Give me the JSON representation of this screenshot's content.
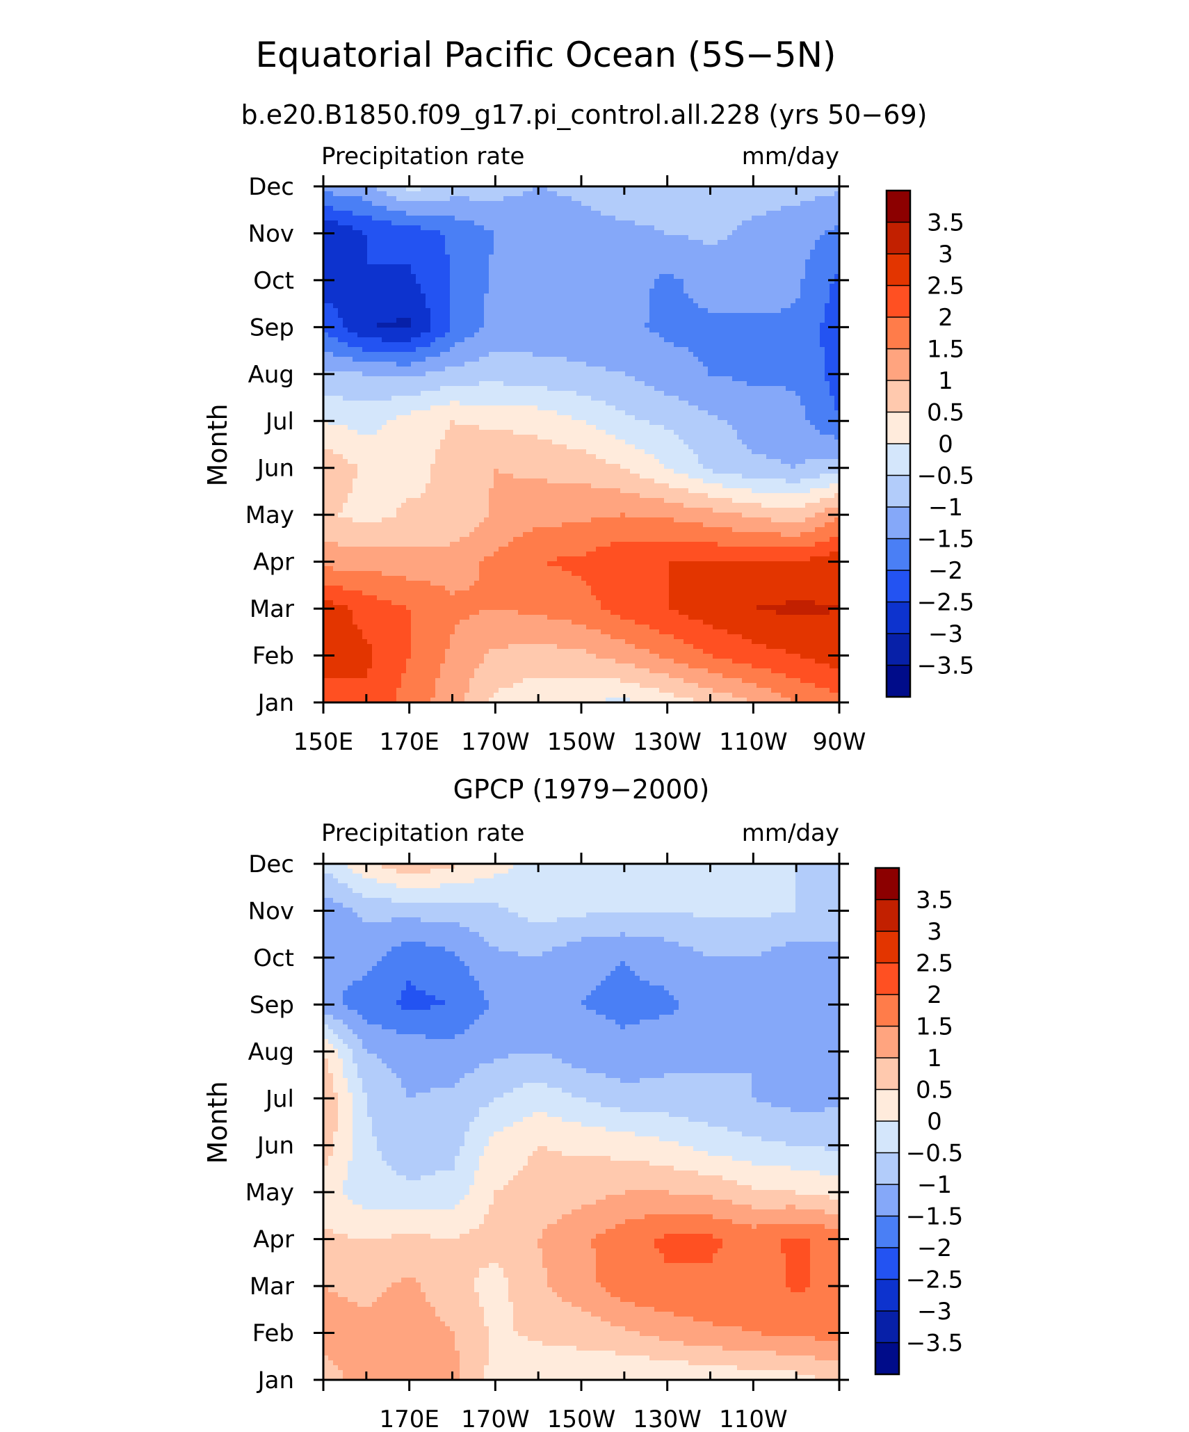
{
  "figure": {
    "title": "Equatorial Pacific Ocean (5S−5N)"
  },
  "chart_data": [
    {
      "type": "heatmap",
      "title": "b.e20.B1850.f09_g17.pi_control.all.228 (yrs 50−69)",
      "left_label": "Precipitation rate",
      "right_label": "mm/day",
      "ylabel": "Month",
      "x_tick_labels": [
        "150E",
        "170E",
        "170W",
        "150W",
        "130W",
        "110W",
        "90W"
      ],
      "y_tick_labels": [
        "Jan",
        "Feb",
        "Mar",
        "Apr",
        "May",
        "Jun",
        "Jul",
        "Aug",
        "Sep",
        "Oct",
        "Nov",
        "Dec"
      ],
      "grid": {
        "x_lon_east": [
          150,
          160,
          170,
          180,
          190,
          200,
          210,
          220,
          230,
          240,
          250,
          260,
          270
        ],
        "y_month": [
          1,
          2,
          3,
          4,
          5,
          6,
          7,
          8,
          9,
          10,
          11,
          12
        ],
        "z": [
          [
            2.2,
            2.4,
            1.8,
            1.2,
            0.4,
            0.1,
            0.0,
            -0.1,
            0.2,
            0.6,
            1.0,
            1.5,
            1.8
          ],
          [
            2.8,
            2.6,
            2.0,
            1.4,
            0.9,
            0.8,
            0.9,
            1.2,
            1.6,
            2.0,
            2.3,
            2.5,
            2.8
          ],
          [
            2.8,
            2.3,
            2.0,
            1.6,
            1.5,
            1.6,
            1.8,
            2.2,
            2.5,
            2.8,
            3.0,
            3.1,
            3.0
          ],
          [
            1.3,
            1.3,
            1.2,
            1.3,
            1.6,
            2.0,
            2.1,
            2.4,
            2.5,
            2.5,
            2.5,
            2.5,
            2.8
          ],
          [
            0.6,
            0.3,
            0.6,
            0.5,
            1.1,
            1.3,
            1.4,
            1.5,
            1.4,
            1.2,
            0.9,
            0.7,
            1.4
          ],
          [
            0.9,
            0.4,
            0.3,
            0.7,
            1.0,
            0.9,
            0.8,
            0.5,
            0.0,
            -0.6,
            -0.9,
            -1.0,
            -0.7
          ],
          [
            0.0,
            -0.2,
            0.2,
            0.5,
            0.4,
            0.3,
            0.0,
            -0.4,
            -0.6,
            -0.9,
            -1.2,
            -1.3,
            -2.0
          ],
          [
            -0.9,
            -1.0,
            -1.1,
            -0.8,
            -0.7,
            -0.8,
            -0.9,
            -1.0,
            -1.3,
            -1.5,
            -1.6,
            -1.6,
            -2.2
          ],
          [
            -2.1,
            -3.0,
            -3.1,
            -2.0,
            -1.3,
            -1.3,
            -1.3,
            -1.4,
            -1.6,
            -1.6,
            -1.6,
            -1.6,
            -2.3
          ],
          [
            -2.8,
            -2.5,
            -2.6,
            -2.0,
            -1.4,
            -1.3,
            -1.3,
            -1.3,
            -1.6,
            -1.3,
            -1.2,
            -1.4,
            -2.1
          ],
          [
            -3.0,
            -2.5,
            -2.3,
            -1.9,
            -1.5,
            -1.3,
            -1.2,
            -1.1,
            -1.0,
            -0.9,
            -1.1,
            -1.3,
            -1.6
          ],
          [
            -1.3,
            -1.1,
            -0.3,
            -0.7,
            -0.8,
            -1.0,
            -0.9,
            -0.7,
            -0.8,
            -0.8,
            -0.8,
            -0.8,
            -0.9
          ]
        ]
      }
    },
    {
      "type": "heatmap",
      "title": "GPCP (1979−2000)",
      "left_label": "Precipitation rate",
      "right_label": "mm/day",
      "ylabel": "Month",
      "x_tick_labels": [
        "170E",
        "170W",
        "150W",
        "130W",
        "110W"
      ],
      "y_tick_labels": [
        "Jan",
        "Feb",
        "Mar",
        "Apr",
        "May",
        "Jun",
        "Jul",
        "Aug",
        "Sep",
        "Oct",
        "Nov",
        "Dec"
      ],
      "grid": {
        "x_lon_east": [
          150,
          160,
          170,
          180,
          190,
          200,
          210,
          220,
          230,
          240,
          250,
          260,
          270
        ],
        "y_month": [
          1,
          2,
          3,
          4,
          5,
          6,
          7,
          8,
          9,
          10,
          11,
          12
        ],
        "z": [
          [
            0.8,
            1.2,
            1.4,
            1.2,
            0.3,
            0.1,
            0.1,
            0.0,
            0.0,
            0.1,
            0.2,
            0.3,
            0.6
          ],
          [
            1.2,
            1.1,
            1.3,
            1.0,
            0.4,
            0.6,
            0.7,
            0.9,
            1.2,
            1.4,
            1.5,
            1.6,
            1.7
          ],
          [
            1.0,
            0.9,
            1.1,
            0.7,
            0.3,
            0.9,
            1.3,
            1.8,
            1.9,
            1.9,
            1.7,
            2.1,
            1.8
          ],
          [
            0.6,
            0.5,
            0.6,
            0.5,
            0.7,
            1.0,
            1.4,
            1.8,
            2.1,
            2.1,
            1.8,
            2.1,
            1.8
          ],
          [
            0.2,
            -0.3,
            -0.4,
            -0.3,
            0.5,
            0.7,
            0.8,
            1.0,
            1.0,
            0.9,
            0.6,
            0.5,
            0.3
          ],
          [
            0.8,
            -0.4,
            -0.8,
            -0.7,
            0.2,
            0.5,
            0.4,
            0.3,
            0.1,
            -0.2,
            -0.4,
            -0.5,
            -0.6
          ],
          [
            1.0,
            -0.5,
            -1.0,
            -0.9,
            -0.5,
            -0.2,
            -0.5,
            -0.8,
            -0.8,
            -0.9,
            -1.0,
            -1.2,
            -1.1
          ],
          [
            0.5,
            -1.0,
            -1.2,
            -1.3,
            -1.1,
            -1.0,
            -1.3,
            -1.4,
            -1.2,
            -1.1,
            -1.0,
            -1.3,
            -1.2
          ],
          [
            -1.3,
            -1.8,
            -2.1,
            -2.0,
            -1.4,
            -1.2,
            -1.5,
            -1.6,
            -1.6,
            -1.3,
            -1.0,
            -1.5,
            -1.3
          ],
          [
            -1.4,
            -1.3,
            -1.9,
            -1.6,
            -1.1,
            -1.0,
            -1.4,
            -1.5,
            -1.3,
            -1.0,
            -1.0,
            -1.3,
            -1.2
          ],
          [
            -1.3,
            -0.9,
            -0.8,
            -0.8,
            -0.6,
            -0.3,
            -0.4,
            -0.5,
            -0.5,
            -0.4,
            -0.4,
            -0.5,
            -0.6
          ],
          [
            -0.4,
            0.4,
            0.9,
            0.6,
            0.2,
            -0.2,
            -0.4,
            -0.5,
            -0.5,
            -0.5,
            -0.5,
            -0.5,
            -0.5
          ]
        ]
      }
    }
  ],
  "colorbar": {
    "labels": [
      "3.5",
      "3",
      "2.5",
      "2",
      "1.5",
      "1",
      "0.5",
      "0",
      "−0.5",
      "−1",
      "−1.5",
      "−2",
      "−2.5",
      "−3",
      "−3.5"
    ],
    "levels": [
      3.5,
      3,
      2.5,
      2,
      1.5,
      1,
      0.5,
      0,
      -0.5,
      -1,
      -1.5,
      -2,
      -2.5,
      -3,
      -3.5
    ],
    "colors": [
      "#8C0000",
      "#C22000",
      "#E33500",
      "#FF5022",
      "#FF7C4A",
      "#FFA47F",
      "#FFC9AE",
      "#FFEBDC",
      "#D4E6FB",
      "#B2CCFA",
      "#85A8F9",
      "#4A7FF5",
      "#2353F2",
      "#0D33CE",
      "#0720A8",
      "#000C8A"
    ]
  }
}
